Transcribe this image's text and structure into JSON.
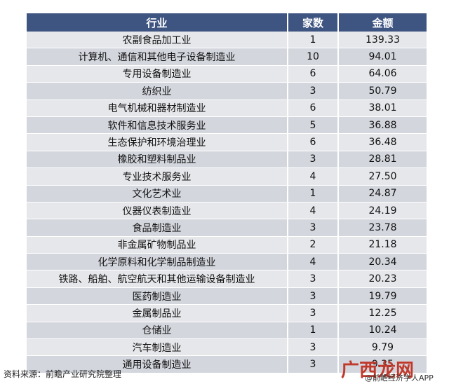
{
  "table": {
    "header": [
      "行业",
      "家数",
      "金额"
    ],
    "rows": [
      [
        "农副食品加工业",
        "1",
        "139.33"
      ],
      [
        "计算机、通信和其他电子设备制造业",
        "10",
        "94.01"
      ],
      [
        "专用设备制造业",
        "6",
        "64.06"
      ],
      [
        "纺织业",
        "3",
        "50.79"
      ],
      [
        "电气机械和器材制造业",
        "6",
        "38.01"
      ],
      [
        "软件和信息技术服务业",
        "5",
        "36.88"
      ],
      [
        "生态保护和环境治理业",
        "6",
        "36.48"
      ],
      [
        "橡胶和塑料制品业",
        "3",
        "28.81"
      ],
      [
        "专业技术服务业",
        "4",
        "27.50"
      ],
      [
        "文化艺术业",
        "1",
        "24.87"
      ],
      [
        "仪器仪表制造业",
        "4",
        "24.19"
      ],
      [
        "食品制造业",
        "3",
        "23.78"
      ],
      [
        "非金属矿物制品业",
        "2",
        "21.18"
      ],
      [
        "化学原料和化学制品制造业",
        "4",
        "20.34"
      ],
      [
        "铁路、船舶、航空航天和其他运输设备制造业",
        "3",
        "20.23"
      ],
      [
        "医药制造业",
        "3",
        "19.79"
      ],
      [
        "金属制品业",
        "3",
        "12.25"
      ],
      [
        "仓储业",
        "1",
        "10.24"
      ],
      [
        "汽车制造业",
        "3",
        "9.79"
      ],
      [
        "通用设备制造业",
        "3",
        "9.35"
      ]
    ]
  },
  "footer": {
    "source": "资料来源：前瞻产业研究院整理",
    "watermark": "广西龙网",
    "app": "@前瞻经济学人APP"
  }
}
